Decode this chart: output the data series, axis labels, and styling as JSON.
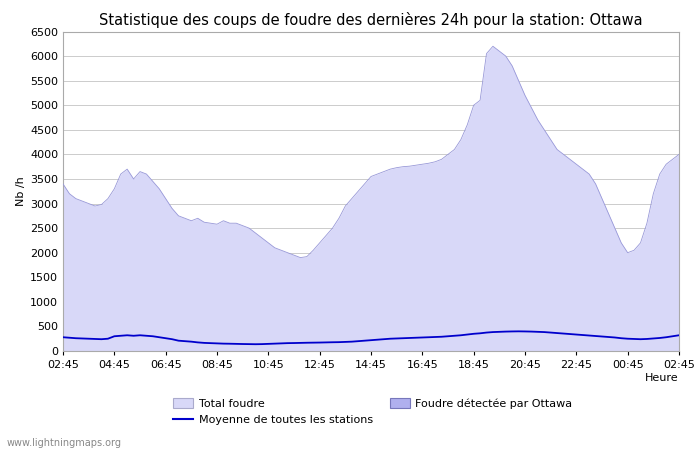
{
  "title": "Statistique des coups de foudre des dernières 24h pour la station: Ottawa",
  "ylabel": "Nb /h",
  "ylim": [
    0,
    6500
  ],
  "yticks": [
    0,
    500,
    1000,
    1500,
    2000,
    2500,
    3000,
    3500,
    4000,
    4500,
    5000,
    5500,
    6000,
    6500
  ],
  "x_labels": [
    "02:45",
    "04:45",
    "06:45",
    "08:45",
    "10:45",
    "12:45",
    "14:45",
    "16:45",
    "18:45",
    "20:45",
    "22:45",
    "00:45",
    "02:45"
  ],
  "fill_color": "#d8d8f8",
  "fill_edge_color": "#9898d8",
  "legend_total_color": "#d8d8f8",
  "legend_ottawa_color": "#b0b0ee",
  "moyenne_color": "#0000cc",
  "background_color": "#ffffff",
  "grid_color": "#cccccc",
  "title_fontsize": 10.5,
  "tick_fontsize": 8,
  "watermark": "www.lightningmaps.org",
  "n_points": 97,
  "total": [
    3400,
    3200,
    3100,
    3050,
    3000,
    2950,
    2980,
    3100,
    3300,
    3600,
    3700,
    3500,
    3650,
    3600,
    3450,
    3300,
    3100,
    2900,
    2750,
    2700,
    2650,
    2700,
    2620,
    2600,
    2580,
    2650,
    2600,
    2600,
    2550,
    2500,
    2400,
    2300,
    2200,
    2100,
    2050,
    2000,
    1950,
    1900,
    1920,
    2050,
    2200,
    2350,
    2500,
    2700,
    2950,
    3100,
    3250,
    3400,
    3550,
    3600,
    3650,
    3700,
    3730,
    3750,
    3760,
    3780,
    3800,
    3820,
    3850,
    3900,
    4000,
    4100,
    4300,
    4600,
    5000,
    5100,
    6050,
    6200,
    6100,
    6000,
    5800,
    5500,
    5200,
    4950,
    4700,
    4500,
    4300,
    4100,
    4000,
    3900,
    3800,
    3700,
    3600,
    3400,
    3100,
    2800,
    2500,
    2200,
    2000,
    2050,
    2200,
    2600,
    3200,
    3600,
    3800,
    3900,
    4000
  ],
  "moyenne": [
    280,
    270,
    260,
    255,
    250,
    245,
    240,
    250,
    300,
    310,
    320,
    310,
    320,
    310,
    300,
    280,
    260,
    240,
    210,
    200,
    190,
    175,
    165,
    160,
    155,
    150,
    148,
    145,
    142,
    140,
    138,
    140,
    145,
    150,
    155,
    160,
    162,
    165,
    168,
    170,
    172,
    175,
    178,
    180,
    185,
    190,
    200,
    210,
    220,
    230,
    240,
    250,
    255,
    260,
    265,
    270,
    275,
    280,
    285,
    290,
    300,
    310,
    320,
    335,
    350,
    360,
    375,
    385,
    390,
    395,
    398,
    400,
    398,
    395,
    390,
    385,
    375,
    365,
    355,
    345,
    335,
    325,
    315,
    305,
    295,
    285,
    275,
    260,
    250,
    245,
    240,
    245,
    255,
    265,
    280,
    300,
    320
  ]
}
